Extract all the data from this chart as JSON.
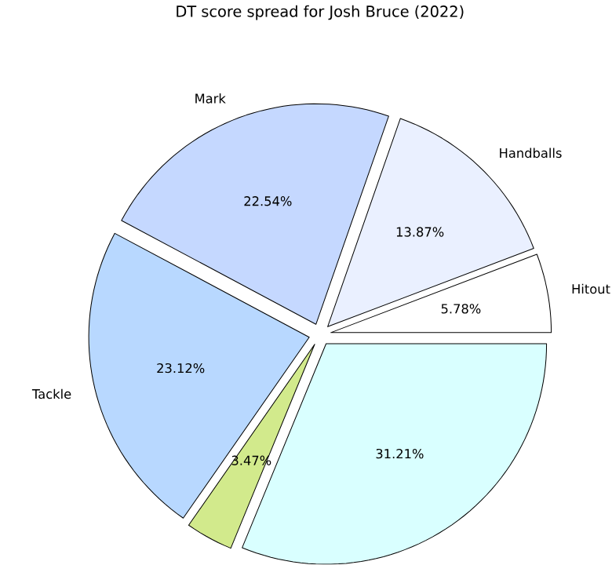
{
  "chart_data": {
    "type": "pie",
    "title": "DT score spread for Josh Bruce (2022)",
    "categories": [
      "Hitout",
      "Handballs",
      "Mark",
      "Tackle",
      null,
      null
    ],
    "values": [
      5.78,
      13.87,
      22.54,
      23.12,
      3.47,
      31.21
    ],
    "value_labels": [
      "5.78%",
      "13.87%",
      "22.54%",
      "23.12%",
      "3.47%",
      "31.21%"
    ],
    "colors": [
      "#ffffff",
      "#eaf0ff",
      "#c5d8ff",
      "#b8d8ff",
      "#d2ea8c",
      "#d9ffff"
    ]
  }
}
